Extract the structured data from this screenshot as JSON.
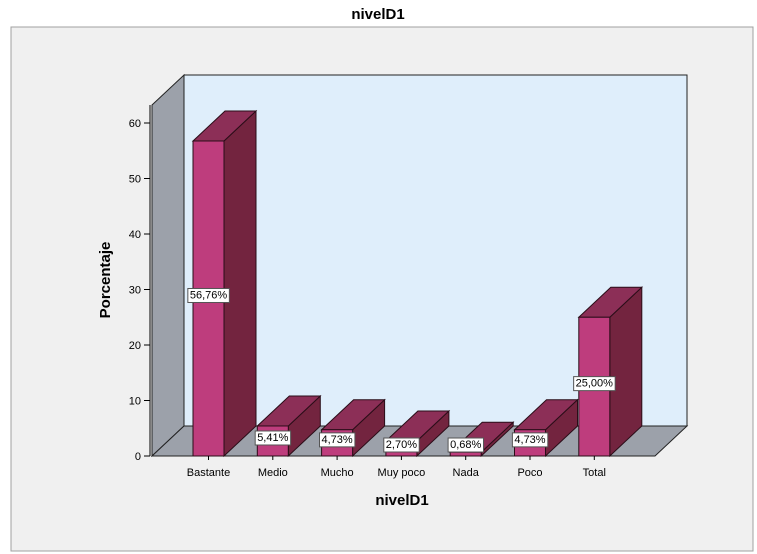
{
  "chart_data": {
    "type": "bar",
    "title": "nivelD1",
    "xlabel": "nivelD1",
    "ylabel": "Porcentaje",
    "categories": [
      "Bastante",
      "Medio",
      "Mucho",
      "Muy poco",
      "Nada",
      "Poco",
      "Total"
    ],
    "values": [
      56.76,
      5.41,
      4.73,
      2.7,
      0.68,
      4.73,
      25.0
    ],
    "data_labels": [
      "56,76%",
      "5,41%",
      "4,73%",
      "2,70%",
      "0,68%",
      "4,73%",
      "25,00%"
    ],
    "yticks": [
      0,
      10,
      20,
      30,
      40,
      50,
      60
    ],
    "ylim": [
      0,
      60
    ],
    "grid": false,
    "style_3d": true,
    "colors": {
      "bar_front": "#be3d7d",
      "bar_side": "#73243f",
      "bar_top": "#8c2f57",
      "back_wall": "#dfeefb",
      "left_wall": "#9ca1aa",
      "floor": "#9ca1aa",
      "plot_background": "#f0f0f0"
    }
  }
}
